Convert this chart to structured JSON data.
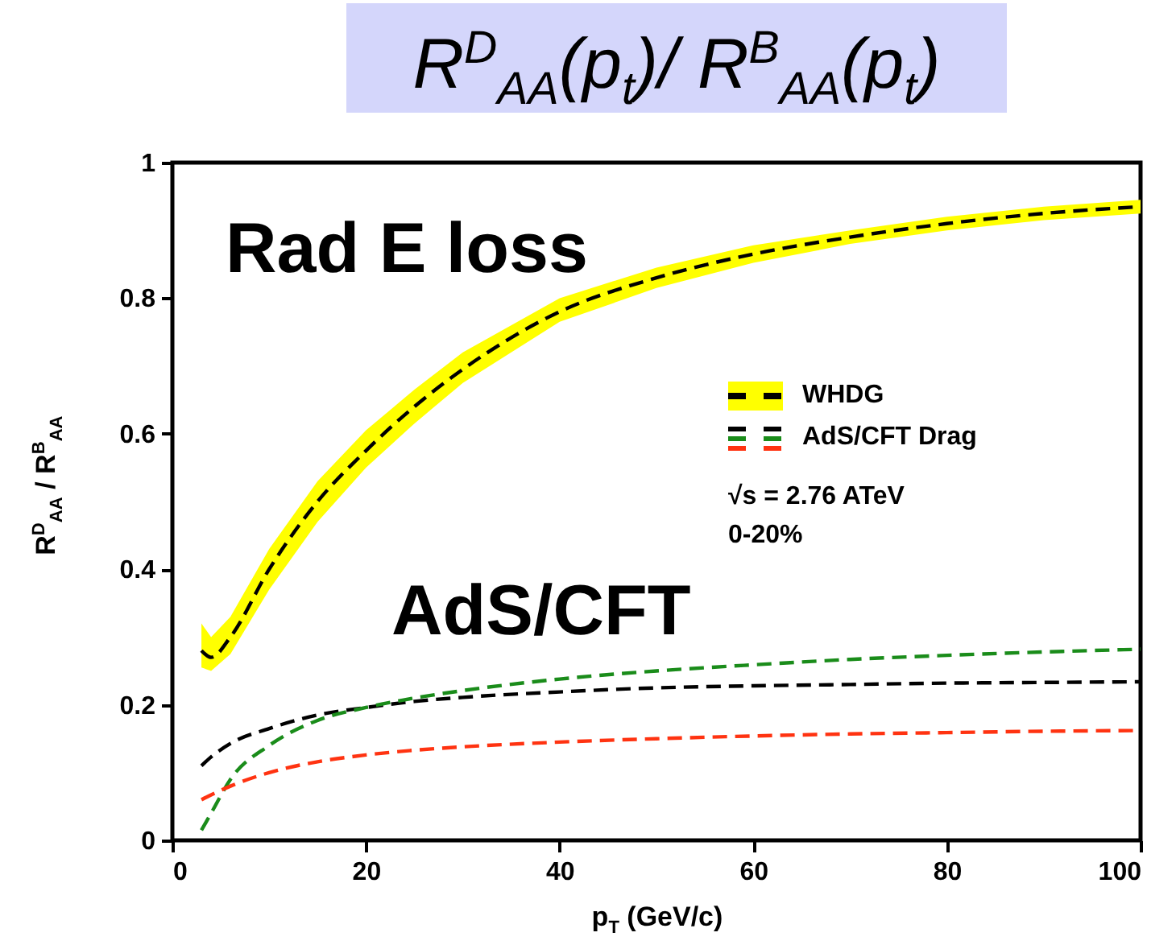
{
  "chart_data": {
    "type": "line",
    "title": "R$^{D}$$_{AA}$(p$_{t}$)/ R$^{B}$$_{AA}$(p$_{t}$)",
    "xlabel": "p$_{T}$ (GeV/c)",
    "ylabel": "R$^{D}$$_{AA}$ / R$^{B}$$_{AA}$",
    "annotations": [
      "Rad E loss",
      "AdS/CFT",
      "√s = 2.76 ATeV",
      "0-20%"
    ],
    "x": [
      3,
      4,
      6,
      10,
      15,
      20,
      25,
      30,
      40,
      50,
      60,
      70,
      80,
      90,
      100
    ],
    "series": [
      {
        "name": "WHDG",
        "color": "#000000",
        "line_style": "dashed",
        "values": [
          0.28,
          0.27,
          0.3,
          0.4,
          0.5,
          0.575,
          0.64,
          0.695,
          0.78,
          0.83,
          0.865,
          0.89,
          0.91,
          0.925,
          0.935
        ],
        "lower": [
          0.255,
          0.25,
          0.275,
          0.37,
          0.47,
          0.55,
          0.615,
          0.675,
          0.765,
          0.815,
          0.852,
          0.88,
          0.9,
          0.915,
          0.925
        ],
        "upper": [
          0.32,
          0.3,
          0.33,
          0.43,
          0.53,
          0.605,
          0.665,
          0.72,
          0.8,
          0.845,
          0.878,
          0.9,
          0.92,
          0.935,
          0.945
        ]
      },
      {
        "name": "AdS/CFT Drag",
        "color": "#000000",
        "line_style": "dashed",
        "values": [
          0.11,
          0.123,
          0.143,
          0.165,
          0.185,
          0.196,
          0.205,
          0.211,
          0.219,
          0.225,
          0.228,
          0.23,
          0.232,
          0.233,
          0.234
        ]
      },
      {
        "color": "#1a8c1a",
        "line_style": "dashed",
        "values": [
          0.015,
          0.04,
          0.09,
          0.14,
          0.177,
          0.196,
          0.21,
          0.221,
          0.238,
          0.25,
          0.259,
          0.267,
          0.273,
          0.278,
          0.282
        ]
      },
      {
        "color": "#ff3311",
        "line_style": "dashed",
        "values": [
          0.06,
          0.067,
          0.08,
          0.1,
          0.116,
          0.126,
          0.133,
          0.138,
          0.145,
          0.15,
          0.154,
          0.157,
          0.159,
          0.161,
          0.162
        ]
      }
    ],
    "xlim": [
      0,
      100
    ],
    "ylim": [
      0,
      1
    ],
    "xticks": [
      0,
      20,
      40,
      60,
      80,
      100
    ],
    "yticks": [
      0,
      0.2,
      0.4,
      0.6,
      0.8,
      1
    ],
    "grid": false,
    "legend": "right",
    "marker": "none"
  }
}
